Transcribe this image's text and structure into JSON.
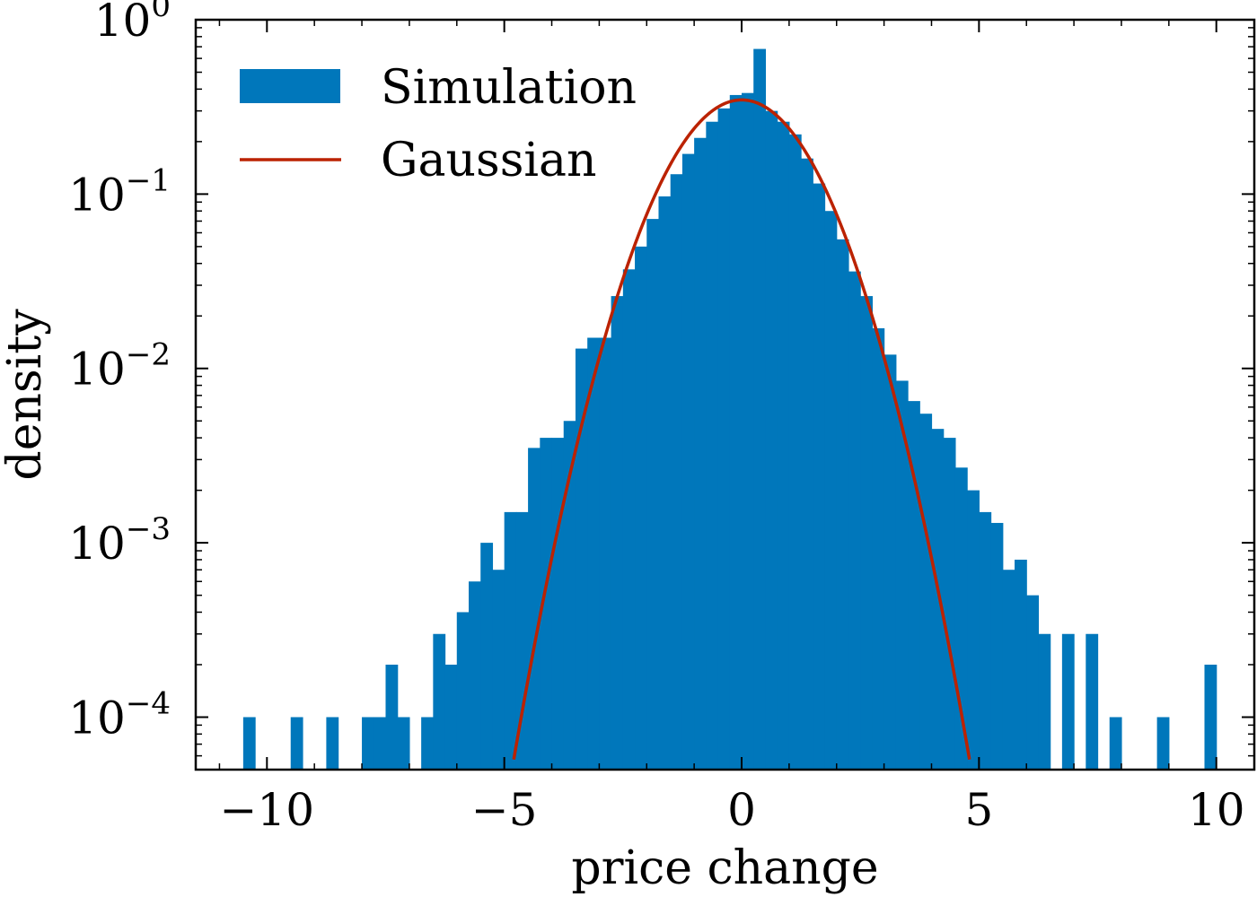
{
  "chart_data": {
    "type": "bar",
    "scale": {
      "x": "linear",
      "y": "log"
    },
    "xlabel": "price change",
    "ylabel": "density",
    "xlim": [
      -11.5,
      10.8
    ],
    "ylim": [
      5e-05,
      1.0
    ],
    "x_ticks": [
      {
        "value": -10,
        "label": "−10"
      },
      {
        "value": -5,
        "label": "−5"
      },
      {
        "value": 0,
        "label": "0"
      },
      {
        "value": 5,
        "label": "5"
      },
      {
        "value": 10,
        "label": "10"
      }
    ],
    "y_ticks": [
      {
        "value": 1,
        "base": "10",
        "exp": "0"
      },
      {
        "value": 0.1,
        "base": "10",
        "exp": "−1"
      },
      {
        "value": 0.01,
        "base": "10",
        "exp": "−2"
      },
      {
        "value": 0.001,
        "base": "10",
        "exp": "−3"
      },
      {
        "value": 0.0001,
        "base": "10",
        "exp": "−4"
      }
    ],
    "legend": {
      "position": "top-left",
      "entries": [
        {
          "label": "Simulation",
          "kind": "bar"
        },
        {
          "label": "Gaussian",
          "kind": "line"
        }
      ]
    },
    "colors": {
      "bars": "#0077bb",
      "gaussian": "#bb2200"
    },
    "histogram": {
      "name": "Simulation",
      "bin_width": 0.25,
      "bins": [
        [
          -10.5,
          0.0001
        ],
        [
          -9.5,
          0.0001
        ],
        [
          -8.75,
          0.0001
        ],
        [
          -8.0,
          0.0001
        ],
        [
          -7.75,
          0.0001
        ],
        [
          -7.5,
          0.0002
        ],
        [
          -7.25,
          0.0001
        ],
        [
          -6.75,
          0.0001
        ],
        [
          -6.5,
          0.0003
        ],
        [
          -6.25,
          0.0002
        ],
        [
          -6.0,
          0.0004
        ],
        [
          -5.75,
          0.0006
        ],
        [
          -5.5,
          0.001
        ],
        [
          -5.25,
          0.0007
        ],
        [
          -5.0,
          0.0015
        ],
        [
          -4.75,
          0.0015
        ],
        [
          -4.5,
          0.0035
        ],
        [
          -4.25,
          0.004
        ],
        [
          -4.0,
          0.004
        ],
        [
          -3.75,
          0.005
        ],
        [
          -3.5,
          0.013
        ],
        [
          -3.25,
          0.015
        ],
        [
          -3.0,
          0.015
        ],
        [
          -2.75,
          0.026
        ],
        [
          -2.5,
          0.037
        ],
        [
          -2.25,
          0.05
        ],
        [
          -2.0,
          0.072
        ],
        [
          -1.75,
          0.097
        ],
        [
          -1.5,
          0.13
        ],
        [
          -1.25,
          0.17
        ],
        [
          -1.0,
          0.21
        ],
        [
          -0.75,
          0.26
        ],
        [
          -0.5,
          0.31
        ],
        [
          -0.25,
          0.37
        ],
        [
          0.0,
          0.38
        ],
        [
          0.25,
          0.68
        ],
        [
          0.5,
          0.3
        ],
        [
          0.75,
          0.26
        ],
        [
          1.0,
          0.22
        ],
        [
          1.25,
          0.16
        ],
        [
          1.5,
          0.115
        ],
        [
          1.75,
          0.08
        ],
        [
          2.0,
          0.055
        ],
        [
          2.25,
          0.036
        ],
        [
          2.5,
          0.026
        ],
        [
          2.75,
          0.017
        ],
        [
          3.0,
          0.012
        ],
        [
          3.25,
          0.0085
        ],
        [
          3.5,
          0.0065
        ],
        [
          3.75,
          0.0055
        ],
        [
          4.0,
          0.0045
        ],
        [
          4.25,
          0.004
        ],
        [
          4.5,
          0.0027
        ],
        [
          4.75,
          0.002
        ],
        [
          5.0,
          0.0015
        ],
        [
          5.25,
          0.0013
        ],
        [
          5.5,
          0.0007
        ],
        [
          5.75,
          0.0008
        ],
        [
          6.0,
          0.0005
        ],
        [
          6.25,
          0.0003
        ],
        [
          6.75,
          0.0003
        ],
        [
          7.25,
          0.0003
        ],
        [
          7.75,
          0.0001
        ],
        [
          8.75,
          0.0001
        ],
        [
          9.75,
          0.0002
        ]
      ]
    },
    "gaussian": {
      "name": "Gaussian",
      "mu": 0.0,
      "sigma": 1.15,
      "x_range": [
        -4.8,
        4.8
      ]
    }
  }
}
